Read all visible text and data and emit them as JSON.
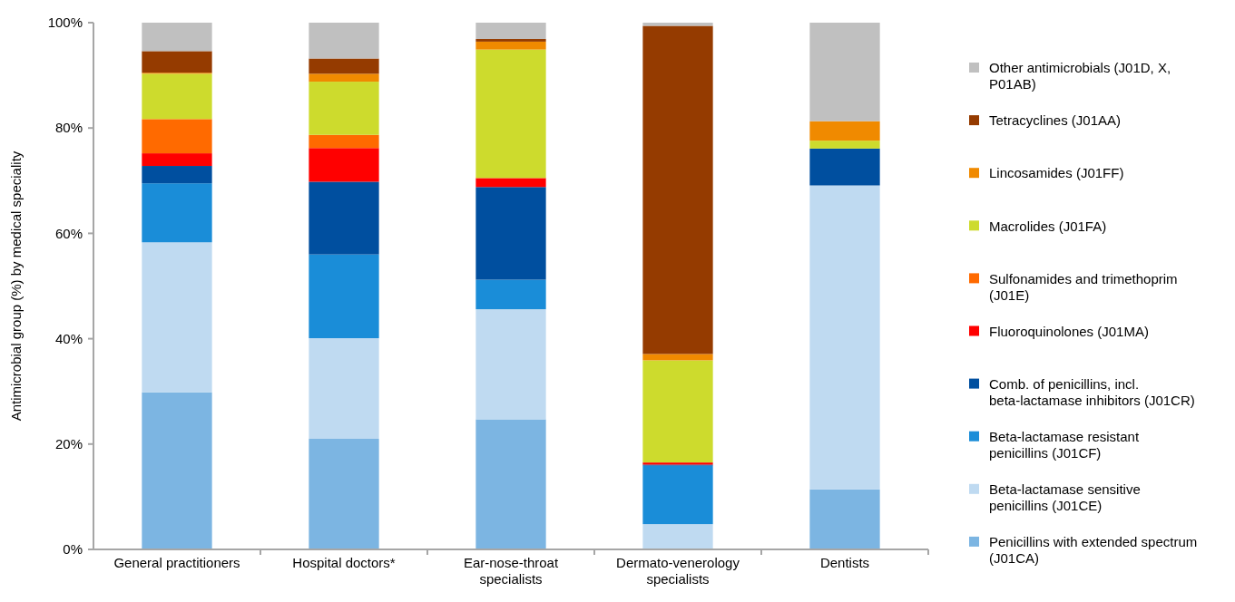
{
  "chart_data": {
    "type": "bar",
    "stacked": true,
    "ylabel": "Antimicrobial group (%) by medical speciality",
    "categories": [
      "General practitioners",
      "Hospital doctors*",
      "Ear-nose-throat specialists",
      "Dermato-venerology specialists",
      "Dentists"
    ],
    "ylim": [
      0,
      100
    ],
    "yticks": [
      {
        "value": 0,
        "label": "0%"
      },
      {
        "value": 20,
        "label": "20%"
      },
      {
        "value": 40,
        "label": "40%"
      },
      {
        "value": 60,
        "label": "60%"
      },
      {
        "value": 80,
        "label": "80%"
      },
      {
        "value": 100,
        "label": "100%"
      }
    ],
    "grid": false,
    "legend": "right",
    "series": [
      {
        "name": "Penicillins with extended spectrum (J01CA)",
        "color": "#7cb5e2",
        "values": [
          29.8,
          21.0,
          24.7,
          0,
          11.4
        ]
      },
      {
        "name": "Beta-lactamase sensitive penicillins (J01CE)",
        "color": "#bfdaf1",
        "values": [
          28.5,
          19.1,
          20.9,
          4.8,
          57.7
        ]
      },
      {
        "name": "Beta-lactamase resistant penicillins (J01CF)",
        "color": "#1a8dd8",
        "values": [
          11.2,
          15.9,
          5.6,
          11.1,
          0
        ]
      },
      {
        "name": "Comb. of penicillins, incl. beta-lactamase inhibitors (J01CR)",
        "color": "#004f9f",
        "values": [
          3.3,
          13.8,
          17.6,
          0.2,
          7.0
        ]
      },
      {
        "name": "Fluoroquinolones (J01MA)",
        "color": "#ff0000",
        "values": [
          2.4,
          6.4,
          1.7,
          0.4,
          0
        ]
      },
      {
        "name": "Sulfonamides and trimethoprim (J01E)",
        "color": "#ff6a00",
        "values": [
          6.5,
          2.5,
          0,
          0,
          0
        ]
      },
      {
        "name": "Macrolides (J01FA)",
        "color": "#cddb2d",
        "values": [
          8.6,
          10.1,
          24.4,
          19.4,
          1.5
        ]
      },
      {
        "name": "Lincosamides (J01FF)",
        "color": "#f08a00",
        "values": [
          0.2,
          1.5,
          1.5,
          1.2,
          3.7
        ]
      },
      {
        "name": "Tetracyclines (J01AA)",
        "color": "#953b00",
        "values": [
          4.1,
          2.9,
          0.5,
          62.3,
          0
        ]
      },
      {
        "name": "Other antimicrobials (J01D, X, P01AB)",
        "color": "#c0c0c0",
        "values": [
          5.4,
          6.8,
          3.1,
          0.6,
          18.7
        ]
      }
    ]
  }
}
